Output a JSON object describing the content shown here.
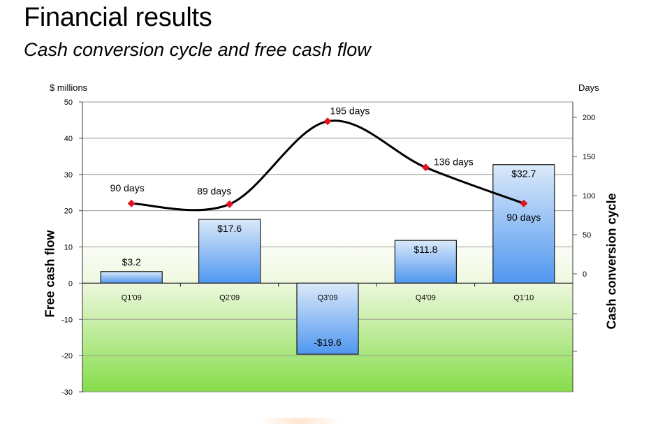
{
  "page": {
    "title": "Financial results",
    "subtitle": "Cash conversion cycle and free cash flow"
  },
  "chart_data": {
    "type": "bar+line",
    "categories": [
      "Q1'09",
      "Q2'09",
      "Q3'09",
      "Q4'09",
      "Q1'10"
    ],
    "bar_series": {
      "name": "Free cash flow",
      "values": [
        3.2,
        17.6,
        -19.6,
        11.8,
        32.7
      ],
      "labels": [
        "$3.2",
        "$17.6",
        "-$19.6",
        "$11.8",
        "$32.7"
      ]
    },
    "line_series": {
      "name": "Cash conversion cycle",
      "values": [
        90,
        89,
        195,
        136,
        90
      ],
      "labels": [
        "90 days",
        "89 days",
        "195 days",
        "136 days",
        "90 days"
      ],
      "color": "#000000",
      "marker_color": "#e0141e"
    },
    "y_left": {
      "label": "Free cash flow",
      "units": "$ millions",
      "range": [
        -30,
        50
      ],
      "ticks": [
        50,
        40,
        30,
        20,
        10,
        0,
        -10,
        -20,
        -30
      ]
    },
    "y_right": {
      "label": "Cash conversion cycle",
      "units": "Days",
      "range": [
        -30,
        200
      ],
      "ticks": [
        200,
        150,
        100,
        50,
        0
      ]
    },
    "grid": true,
    "colors": {
      "bar_top": "#dbe9f9",
      "bar_bottom": "#4f97f0",
      "bar_stroke": "#1a1a1a",
      "bg_top": "#ffffff",
      "bg_mid": "#eef8df",
      "bg_bottom": "#86dd4a"
    }
  }
}
